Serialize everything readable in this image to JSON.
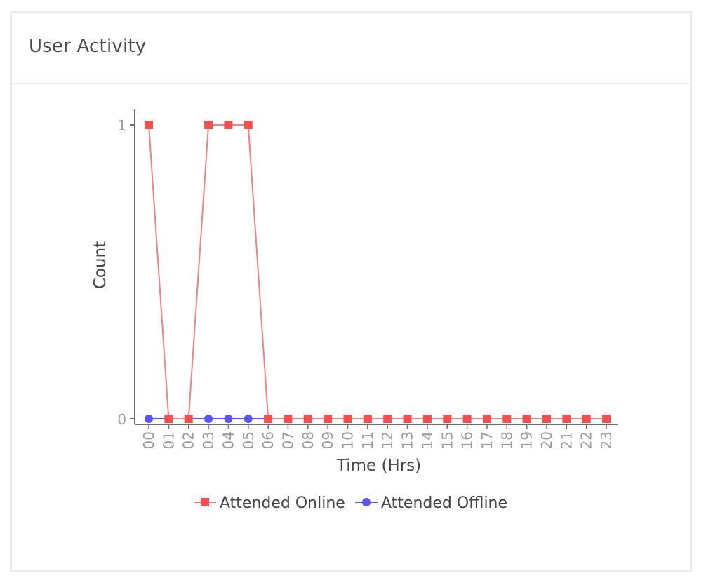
{
  "panel": {
    "title": "User Activity"
  },
  "chart_data": {
    "type": "line",
    "title": "",
    "xlabel": "Time (Hrs)",
    "ylabel": "Count",
    "ylim": [
      0,
      1
    ],
    "y_ticks": [
      "0",
      "1"
    ],
    "categories": [
      "00",
      "01",
      "02",
      "03",
      "04",
      "05",
      "06",
      "07",
      "08",
      "09",
      "10",
      "11",
      "12",
      "13",
      "14",
      "15",
      "16",
      "17",
      "18",
      "19",
      "20",
      "21",
      "22",
      "23"
    ],
    "series": [
      {
        "name": "Attended Online",
        "color": "#f05050",
        "line_color": "#e88585",
        "marker": "square",
        "values": [
          1,
          0,
          0,
          1,
          1,
          1,
          0,
          0,
          0,
          0,
          0,
          0,
          0,
          0,
          0,
          0,
          0,
          0,
          0,
          0,
          0,
          0,
          0,
          0
        ]
      },
      {
        "name": "Attended Offline",
        "color": "#5a55ee",
        "line_color": "#5a55ee",
        "marker": "circle",
        "values": [
          0,
          0,
          0,
          0,
          0,
          0,
          0,
          0,
          0,
          0,
          0,
          0,
          0,
          0,
          0,
          0,
          0,
          0,
          0,
          0,
          0,
          0,
          0,
          0
        ]
      }
    ],
    "legend_position": "bottom",
    "grid": false
  }
}
